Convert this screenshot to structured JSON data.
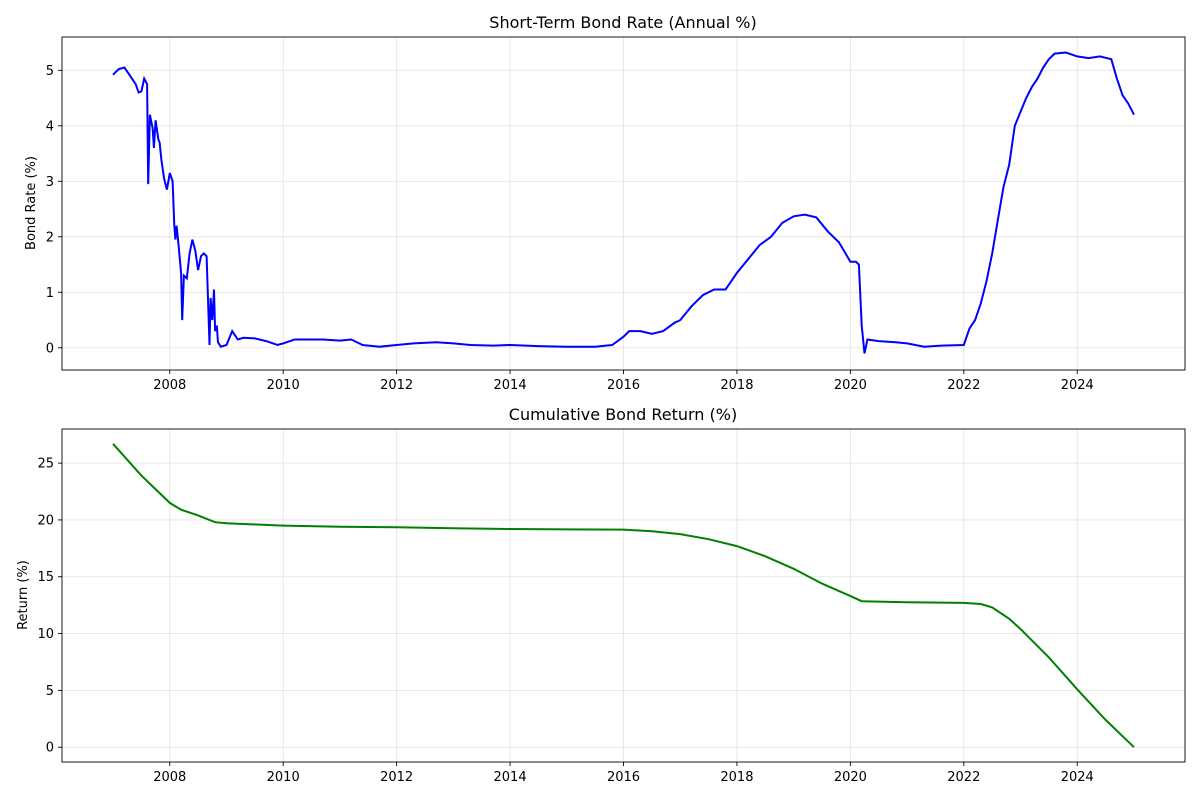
{
  "chart_data": [
    {
      "type": "line",
      "title": "Short-Term Bond Rate (Annual %)",
      "xlabel": "",
      "ylabel": "Bond Rate (%)",
      "xlim": [
        2006.1,
        2025.9
      ],
      "ylim": [
        -0.4,
        5.6
      ],
      "xticks": [
        2008,
        2010,
        2012,
        2014,
        2016,
        2018,
        2020,
        2022,
        2024
      ],
      "yticks": [
        0,
        1,
        2,
        3,
        4,
        5
      ],
      "grid": true,
      "color": "#0000ff",
      "series": [
        {
          "x": [
            2007.0,
            2007.1,
            2007.2,
            2007.3,
            2007.4,
            2007.45,
            2007.5,
            2007.55,
            2007.6,
            2007.62,
            2007.65,
            2007.7,
            2007.72,
            2007.75,
            2007.8,
            2007.82,
            2007.85,
            2007.9,
            2007.95,
            2008.0,
            2008.05,
            2008.08,
            2008.1,
            2008.12,
            2008.15,
            2008.2,
            2008.22,
            2008.25,
            2008.3,
            2008.35,
            2008.4,
            2008.45,
            2008.5,
            2008.55,
            2008.6,
            2008.65,
            2008.7,
            2008.72,
            2008.75,
            2008.78,
            2008.8,
            2008.83,
            2008.85,
            2008.9,
            2009.0,
            2009.1,
            2009.2,
            2009.3,
            2009.5,
            2009.7,
            2009.9,
            2010.0,
            2010.2,
            2010.4,
            2010.7,
            2011.0,
            2011.2,
            2011.4,
            2011.7,
            2012.0,
            2012.3,
            2012.7,
            2013.0,
            2013.3,
            2013.7,
            2014.0,
            2014.5,
            2015.0,
            2015.5,
            2015.8,
            2016.0,
            2016.1,
            2016.3,
            2016.5,
            2016.7,
            2016.9,
            2017.0,
            2017.2,
            2017.4,
            2017.6,
            2017.8,
            2018.0,
            2018.2,
            2018.4,
            2018.6,
            2018.8,
            2019.0,
            2019.2,
            2019.4,
            2019.6,
            2019.8,
            2020.0,
            2020.1,
            2020.15,
            2020.2,
            2020.25,
            2020.3,
            2020.5,
            2020.8,
            2021.0,
            2021.3,
            2021.6,
            2022.0,
            2022.1,
            2022.2,
            2022.3,
            2022.4,
            2022.5,
            2022.6,
            2022.7,
            2022.8,
            2022.9,
            2023.0,
            2023.1,
            2023.2,
            2023.3,
            2023.4,
            2023.5,
            2023.6,
            2023.8,
            2024.0,
            2024.2,
            2024.4,
            2024.6,
            2024.7,
            2024.8,
            2024.9,
            2025.0
          ],
          "y": [
            4.92,
            5.02,
            5.05,
            4.9,
            4.75,
            4.6,
            4.62,
            4.85,
            4.75,
            2.95,
            4.2,
            3.95,
            3.6,
            4.1,
            3.75,
            3.7,
            3.4,
            3.05,
            2.85,
            3.15,
            3.0,
            2.2,
            1.95,
            2.2,
            1.9,
            1.35,
            0.5,
            1.3,
            1.25,
            1.7,
            1.95,
            1.75,
            1.4,
            1.65,
            1.7,
            1.65,
            0.05,
            0.9,
            0.5,
            1.05,
            0.3,
            0.4,
            0.1,
            0.02,
            0.05,
            0.3,
            0.15,
            0.18,
            0.17,
            0.12,
            0.05,
            0.08,
            0.15,
            0.15,
            0.15,
            0.13,
            0.15,
            0.05,
            0.02,
            0.05,
            0.08,
            0.1,
            0.08,
            0.05,
            0.04,
            0.05,
            0.03,
            0.02,
            0.02,
            0.05,
            0.2,
            0.3,
            0.3,
            0.25,
            0.3,
            0.45,
            0.5,
            0.75,
            0.95,
            1.05,
            1.05,
            1.35,
            1.6,
            1.85,
            2.0,
            2.25,
            2.37,
            2.4,
            2.35,
            2.1,
            1.9,
            1.55,
            1.55,
            1.5,
            0.4,
            -0.1,
            0.15,
            0.12,
            0.1,
            0.08,
            0.02,
            0.04,
            0.05,
            0.35,
            0.5,
            0.8,
            1.2,
            1.7,
            2.3,
            2.9,
            3.3,
            4.0,
            4.25,
            4.5,
            4.7,
            4.85,
            5.05,
            5.2,
            5.3,
            5.32,
            5.25,
            5.22,
            5.25,
            5.2,
            4.85,
            4.55,
            4.4,
            4.2
          ]
        }
      ]
    },
    {
      "type": "line",
      "title": "Cumulative Bond Return (%)",
      "xlabel": "",
      "ylabel": "Return (%)",
      "xlim": [
        2006.1,
        2025.9
      ],
      "ylim": [
        -1.3,
        28.0
      ],
      "xticks": [
        2008,
        2010,
        2012,
        2014,
        2016,
        2018,
        2020,
        2022,
        2024
      ],
      "yticks": [
        0,
        5,
        10,
        15,
        20,
        25
      ],
      "grid": true,
      "color": "#008000",
      "series": [
        {
          "x": [
            2007.0,
            2007.5,
            2008.0,
            2008.2,
            2008.5,
            2008.8,
            2009.0,
            2010.0,
            2011.0,
            2012.0,
            2013.0,
            2014.0,
            2015.0,
            2016.0,
            2016.5,
            2017.0,
            2017.5,
            2018.0,
            2018.5,
            2019.0,
            2019.5,
            2020.0,
            2020.2,
            2021.0,
            2022.0,
            2022.3,
            2022.5,
            2022.8,
            2023.0,
            2023.5,
            2024.0,
            2024.5,
            2025.0
          ],
          "y": [
            26.7,
            23.9,
            21.5,
            20.9,
            20.4,
            19.8,
            19.7,
            19.5,
            19.4,
            19.35,
            19.27,
            19.2,
            19.17,
            19.15,
            19.0,
            18.75,
            18.3,
            17.7,
            16.8,
            15.7,
            14.4,
            13.3,
            12.85,
            12.75,
            12.7,
            12.6,
            12.3,
            11.3,
            10.4,
            7.9,
            5.1,
            2.4,
            0.0
          ]
        }
      ]
    }
  ]
}
